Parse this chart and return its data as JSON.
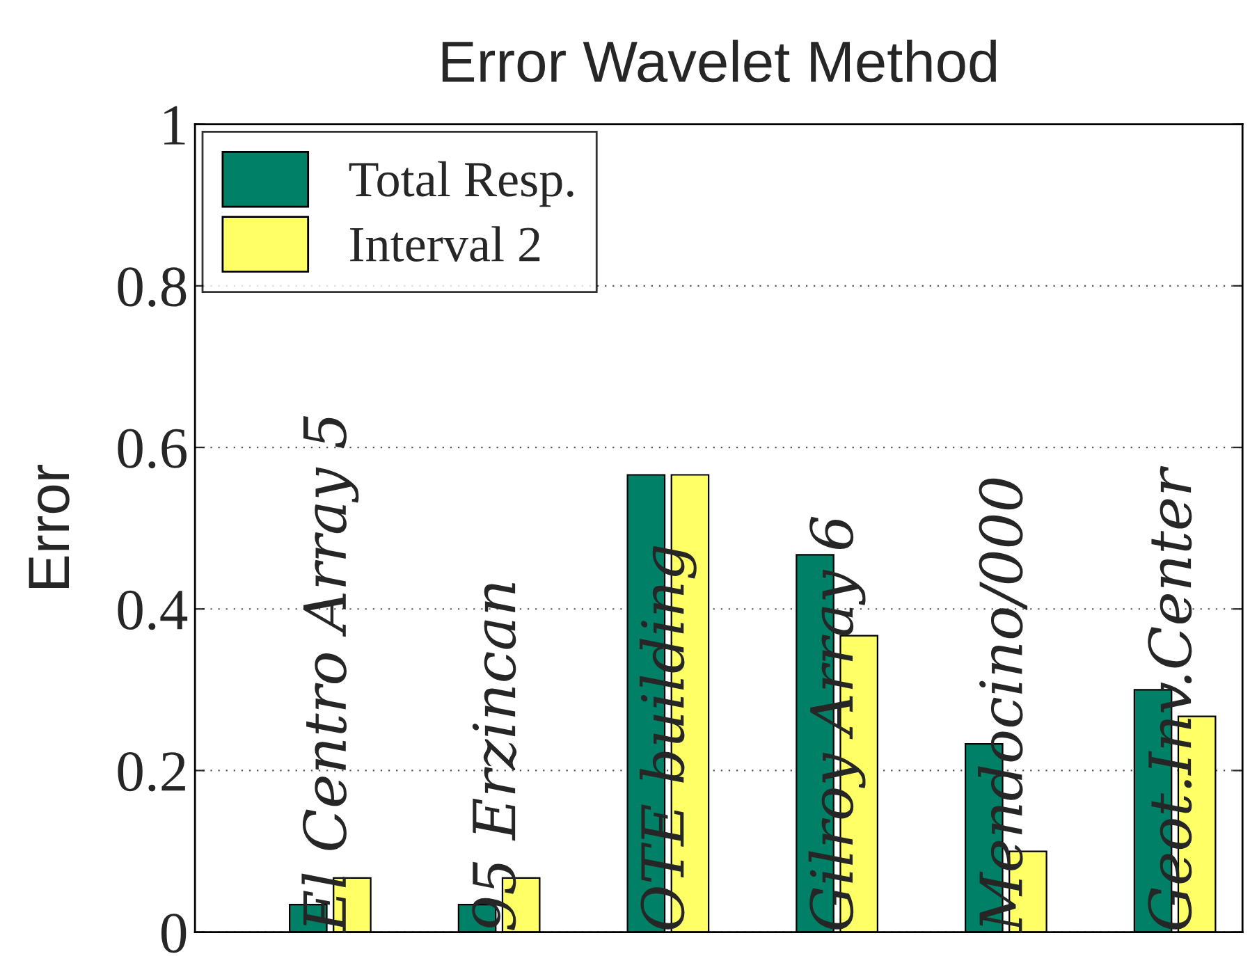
{
  "chart_data": {
    "type": "bar",
    "title": "Error Wavelet Method",
    "ylabel": "Error",
    "categories": [
      "El Centro Array 5",
      "95 Erzincan",
      "OTE building",
      "Gilroy Array 6",
      "Mendocino/000",
      "Geot.Inv.Center"
    ],
    "series": [
      {
        "name": "Total Resp.",
        "color": "#008066",
        "values": [
          0.034,
          0.034,
          0.566,
          0.467,
          0.233,
          0.3
        ]
      },
      {
        "name": "Interval 2",
        "color": "#ffff66",
        "values": [
          0.067,
          0.067,
          0.566,
          0.367,
          0.1,
          0.267
        ]
      }
    ],
    "ylim": [
      0,
      1
    ],
    "yticks": [
      0,
      0.2,
      0.4,
      0.6,
      0.8,
      1
    ],
    "grid": "y",
    "legend": "top left",
    "tick_labels": "y"
  }
}
